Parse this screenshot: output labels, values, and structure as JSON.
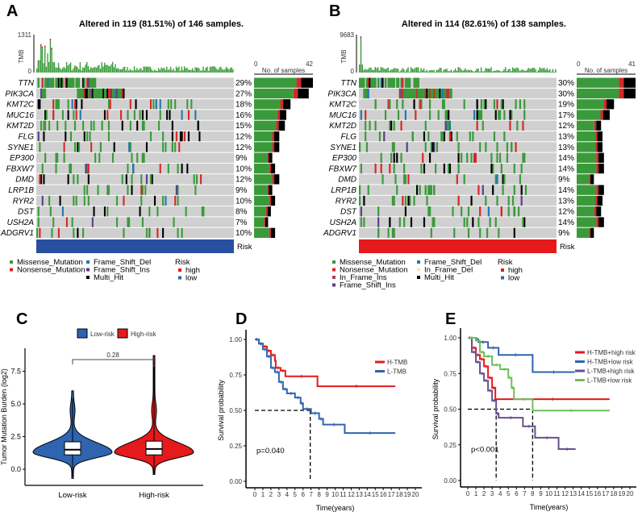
{
  "chart_data": [
    {
      "panel": "A",
      "type": "heatmap",
      "title": "Altered in 119 (81.51%) of 146 samples.",
      "tmb_label": "TMB",
      "tmb_max": "1311",
      "tmb_min": "0",
      "samples_axis_label": "No. of samples",
      "samples_axis": [
        "0",
        "42"
      ],
      "samples_max": 42,
      "n_samples": 146,
      "risk_label": "Risk",
      "risk_group": "low",
      "genes": [
        "TTN",
        "PIK3CA",
        "KMT2C",
        "MUC16",
        "KMT2D",
        "FLG",
        "SYNE1",
        "EP300",
        "FBXW7",
        "DMD",
        "LRP1B",
        "RYR2",
        "DST",
        "USH2A",
        "ADGRV1"
      ],
      "percents": [
        "29%",
        "27%",
        "18%",
        "16%",
        "15%",
        "12%",
        "12%",
        "9%",
        "10%",
        "12%",
        "9%",
        "10%",
        "8%",
        "7%",
        "10%"
      ],
      "legend": [
        "Missense_Mutation",
        "Nonsense_Mutation",
        "Frame_Shift_Del",
        "Frame_Shift_Ins",
        "Multi_Hit"
      ],
      "legend_colors": [
        "#3a9a3a",
        "#d62728",
        "#1f77b4",
        "#5a3d8a",
        "#000000"
      ]
    },
    {
      "panel": "B",
      "type": "heatmap",
      "title": "Altered in 114 (82.61%) of 138 samples.",
      "tmb_label": "TMB",
      "tmb_max": "9683",
      "tmb_min": "0",
      "samples_axis_label": "No. of samples",
      "samples_axis": [
        "0",
        "41"
      ],
      "samples_max": 41,
      "n_samples": 138,
      "risk_label": "Risk",
      "risk_group": "high",
      "genes": [
        "TTN",
        "PIK3CA",
        "KMT2C",
        "MUC16",
        "KMT2D",
        "FLG",
        "SYNE1",
        "EP300",
        "FBXW7",
        "DMD",
        "LRP1B",
        "RYR2",
        "DST",
        "USH2A",
        "ADGRV1"
      ],
      "percents": [
        "30%",
        "30%",
        "19%",
        "17%",
        "12%",
        "13%",
        "13%",
        "14%",
        "14%",
        "9%",
        "14%",
        "13%",
        "12%",
        "14%",
        "9%"
      ],
      "legend": [
        "Missense_Mutation",
        "Nonsense_Mutation",
        "In_Frame_Ins",
        "Frame_Shift_Ins",
        "Frame_Shift_Del",
        "In_Frame_Del",
        "Multi_Hit"
      ],
      "legend_colors": [
        "#3a9a3a",
        "#d62728",
        "#b04050",
        "#5a3d8a",
        "#1f77b4",
        "#f0f0a0",
        "#000000"
      ]
    },
    {
      "panel": "C",
      "type": "violin",
      "ylabel": "Tumor Mutation Burden (log2)",
      "categories": [
        "Low-risk",
        "High-risk"
      ],
      "colors": [
        "#2e64b0",
        "#e41a1c"
      ],
      "legend": [
        "Low-risk",
        "High-risk"
      ],
      "yticks": [
        "0.0",
        "2.5",
        "5.0",
        "7.5"
      ],
      "ylim": [
        -1.2,
        9
      ],
      "p_value": "0.28",
      "stats": [
        {
          "min": -0.7,
          "q1": 1.1,
          "median": 1.5,
          "q3": 2.1,
          "max": 6.0
        },
        {
          "min": -0.4,
          "q1": 1.1,
          "median": 1.55,
          "q3": 2.15,
          "max": 8.7
        }
      ]
    },
    {
      "panel": "D",
      "type": "line",
      "xlabel": "Time(years)",
      "ylabel": "Survival probability",
      "xticks": [
        "0",
        "1",
        "2",
        "3",
        "4",
        "5",
        "6",
        "7",
        "8",
        "9",
        "10",
        "11",
        "12",
        "13",
        "14",
        "15",
        "16",
        "17",
        "18",
        "19",
        "20"
      ],
      "yticks": [
        "0.00",
        "0.25",
        "0.50",
        "0.75",
        "1.00"
      ],
      "xlim": [
        0,
        20
      ],
      "ylim": [
        0,
        1
      ],
      "p_text": "p=0.040",
      "median_times": [
        6.9
      ],
      "series": [
        {
          "name": "H-TMB",
          "color": "#e41a1c",
          "steps": [
            [
              0,
              1
            ],
            [
              0.5,
              0.97
            ],
            [
              1,
              0.95
            ],
            [
              1.5,
              0.92
            ],
            [
              2,
              0.89
            ],
            [
              2.5,
              0.85
            ],
            [
              2.6,
              0.8
            ],
            [
              3.2,
              0.78
            ],
            [
              3.8,
              0.74
            ],
            [
              7.8,
              0.67
            ],
            [
              17.5,
              0.67
            ]
          ]
        },
        {
          "name": "L-TMB",
          "color": "#2e64b0",
          "steps": [
            [
              0,
              1
            ],
            [
              0.5,
              0.97
            ],
            [
              1,
              0.93
            ],
            [
              1.5,
              0.88
            ],
            [
              2,
              0.8
            ],
            [
              2.5,
              0.77
            ],
            [
              3,
              0.7
            ],
            [
              3.5,
              0.65
            ],
            [
              4,
              0.62
            ],
            [
              5,
              0.59
            ],
            [
              5.7,
              0.55
            ],
            [
              6,
              0.51
            ],
            [
              7,
              0.48
            ],
            [
              8,
              0.44
            ],
            [
              8.5,
              0.4
            ],
            [
              11.2,
              0.34
            ],
            [
              17.5,
              0.34
            ]
          ]
        }
      ]
    },
    {
      "panel": "E",
      "type": "line",
      "xlabel": "Time(years)",
      "ylabel": "Survival probability",
      "xticks": [
        "0",
        "1",
        "2",
        "3",
        "4",
        "5",
        "6",
        "7",
        "8",
        "9",
        "10",
        "11",
        "12",
        "13",
        "14",
        "15",
        "16",
        "17",
        "18",
        "19",
        "20"
      ],
      "yticks": [
        "0.00",
        "0.25",
        "0.50",
        "0.75",
        "1.00"
      ],
      "xlim": [
        0,
        20
      ],
      "ylim": [
        0,
        1
      ],
      "p_text": "p<0.001",
      "median_times": [
        3.5,
        8
      ],
      "series": [
        {
          "name": "H-TMB+high risk",
          "color": "#e41a1c",
          "steps": [
            [
              0,
              1
            ],
            [
              0.5,
              0.93
            ],
            [
              1,
              0.88
            ],
            [
              1.5,
              0.85
            ],
            [
              2,
              0.8
            ],
            [
              2.5,
              0.72
            ],
            [
              3,
              0.65
            ],
            [
              3.4,
              0.57
            ],
            [
              17.5,
              0.57
            ]
          ]
        },
        {
          "name": "H-TMB+low risk",
          "color": "#2e64b0",
          "steps": [
            [
              0,
              1
            ],
            [
              1,
              0.99
            ],
            [
              1.3,
              0.97
            ],
            [
              2.5,
              0.93
            ],
            [
              3.8,
              0.88
            ],
            [
              8,
              0.76
            ],
            [
              13.2,
              0.76
            ]
          ]
        },
        {
          "name": "L-TMB+high risk",
          "color": "#6a4f8f",
          "steps": [
            [
              0,
              1
            ],
            [
              0.5,
              0.9
            ],
            [
              1,
              0.83
            ],
            [
              1.5,
              0.75
            ],
            [
              2,
              0.7
            ],
            [
              2.5,
              0.63
            ],
            [
              3,
              0.56
            ],
            [
              3.5,
              0.47
            ],
            [
              3.8,
              0.44
            ],
            [
              6.8,
              0.38
            ],
            [
              8.3,
              0.3
            ],
            [
              11.2,
              0.22
            ],
            [
              13.3,
              0.22
            ]
          ]
        },
        {
          "name": "L-TMB+low risk",
          "color": "#6cc05a",
          "steps": [
            [
              0,
              1
            ],
            [
              1,
              0.98
            ],
            [
              1.5,
              0.9
            ],
            [
              2,
              0.87
            ],
            [
              3,
              0.81
            ],
            [
              4,
              0.78
            ],
            [
              5,
              0.72
            ],
            [
              5.4,
              0.65
            ],
            [
              5.7,
              0.57
            ],
            [
              8,
              0.49
            ],
            [
              17.5,
              0.49
            ]
          ]
        }
      ]
    }
  ],
  "risk_legend": {
    "title": "Risk",
    "items": [
      "high",
      "low"
    ],
    "colors": [
      "#e41a1c",
      "#2e64b0"
    ]
  },
  "panel_labels": [
    "A",
    "B",
    "C",
    "D",
    "E"
  ]
}
